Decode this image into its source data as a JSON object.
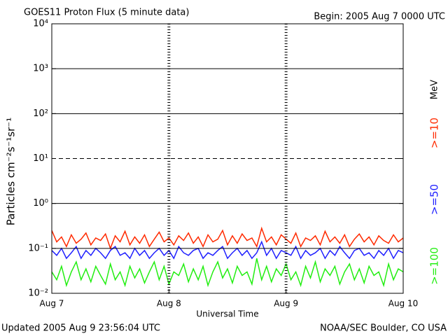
{
  "chart_data": {
    "type": "line",
    "title": "GOES11 Proton Flux (5 minute data)",
    "subtitle": "Begin: 2005 Aug 7 0000 UTC",
    "footer_left": "Updated 2005 Aug  9 23:56:04 UTC",
    "footer_right": "NOAA/SEC Boulder, CO USA",
    "xlabel": "Universal Time",
    "ylabel": "Particles cm⁻²s⁻¹sr⁻¹",
    "legend_unit": "MeV",
    "log_y": true,
    "grid": true,
    "grid_dash": [
      false,
      false,
      false,
      true,
      false,
      false,
      false
    ],
    "xlim": [
      0,
      72
    ],
    "xticks": [
      {
        "value": 0,
        "label": "Aug 7"
      },
      {
        "value": 24,
        "label": "Aug 8"
      },
      {
        "value": 48,
        "label": "Aug 9"
      },
      {
        "value": 72,
        "label": "Aug 10"
      }
    ],
    "ylim": [
      0.01,
      10000
    ],
    "yticks": [
      {
        "value": 0.01,
        "label": "10⁻²"
      },
      {
        "value": 0.1,
        "label": "10⁻¹"
      },
      {
        "value": 1,
        "label": "10⁰"
      },
      {
        "value": 10,
        "label": "10¹"
      },
      {
        "value": 100,
        "label": "10²"
      },
      {
        "value": 1000,
        "label": "10³"
      },
      {
        "value": 10000,
        "label": "10⁴"
      }
    ],
    "x": [
      0,
      1,
      2,
      3,
      4,
      5,
      6,
      7,
      8,
      9,
      10,
      11,
      12,
      13,
      14,
      15,
      16,
      17,
      18,
      19,
      20,
      21,
      22,
      23,
      24,
      25,
      26,
      27,
      28,
      29,
      30,
      31,
      32,
      33,
      34,
      35,
      36,
      37,
      38,
      39,
      40,
      41,
      42,
      43,
      44,
      45,
      46,
      47,
      48,
      49,
      50,
      51,
      52,
      53,
      54,
      55,
      56,
      57,
      58,
      59,
      60,
      61,
      62,
      63,
      64,
      65,
      66,
      67,
      68,
      69,
      70,
      71,
      72
    ],
    "series": [
      {
        "name": ">=10",
        "color": "#ff2a00",
        "values": [
          0.25,
          0.14,
          0.18,
          0.11,
          0.2,
          0.13,
          0.16,
          0.22,
          0.12,
          0.17,
          0.15,
          0.21,
          0.1,
          0.19,
          0.14,
          0.24,
          0.12,
          0.18,
          0.13,
          0.2,
          0.11,
          0.16,
          0.23,
          0.14,
          0.17,
          0.12,
          0.19,
          0.15,
          0.22,
          0.13,
          0.18,
          0.11,
          0.2,
          0.14,
          0.16,
          0.25,
          0.12,
          0.19,
          0.13,
          0.21,
          0.15,
          0.17,
          0.11,
          0.28,
          0.14,
          0.18,
          0.12,
          0.2,
          0.16,
          0.13,
          0.22,
          0.11,
          0.17,
          0.15,
          0.19,
          0.12,
          0.24,
          0.14,
          0.18,
          0.13,
          0.2,
          0.11,
          0.16,
          0.21,
          0.14,
          0.18,
          0.12,
          0.19,
          0.15,
          0.13,
          0.2,
          0.14,
          0.17
        ]
      },
      {
        "name": ">=50",
        "color": "#2020ff",
        "values": [
          0.09,
          0.07,
          0.1,
          0.06,
          0.08,
          0.11,
          0.06,
          0.09,
          0.07,
          0.1,
          0.08,
          0.06,
          0.09,
          0.11,
          0.07,
          0.08,
          0.06,
          0.1,
          0.07,
          0.09,
          0.06,
          0.08,
          0.1,
          0.07,
          0.09,
          0.06,
          0.11,
          0.08,
          0.07,
          0.09,
          0.1,
          0.06,
          0.08,
          0.07,
          0.09,
          0.11,
          0.06,
          0.08,
          0.1,
          0.07,
          0.09,
          0.06,
          0.08,
          0.14,
          0.07,
          0.1,
          0.06,
          0.09,
          0.08,
          0.07,
          0.11,
          0.06,
          0.09,
          0.07,
          0.08,
          0.1,
          0.06,
          0.09,
          0.07,
          0.11,
          0.08,
          0.06,
          0.09,
          0.1,
          0.07,
          0.08,
          0.06,
          0.09,
          0.07,
          0.1,
          0.06,
          0.09,
          0.08
        ]
      },
      {
        "name": ">=100",
        "color": "#22ee11",
        "values": [
          0.03,
          0.02,
          0.04,
          0.015,
          0.03,
          0.05,
          0.02,
          0.035,
          0.018,
          0.04,
          0.025,
          0.016,
          0.045,
          0.02,
          0.03,
          0.015,
          0.04,
          0.022,
          0.035,
          0.017,
          0.03,
          0.05,
          0.02,
          0.04,
          0.016,
          0.03,
          0.025,
          0.045,
          0.018,
          0.035,
          0.02,
          0.04,
          0.015,
          0.03,
          0.05,
          0.022,
          0.035,
          0.017,
          0.04,
          0.025,
          0.03,
          0.016,
          0.06,
          0.02,
          0.04,
          0.018,
          0.035,
          0.025,
          0.045,
          0.02,
          0.03,
          0.015,
          0.04,
          0.022,
          0.05,
          0.018,
          0.035,
          0.025,
          0.04,
          0.016,
          0.03,
          0.045,
          0.02,
          0.035,
          0.017,
          0.04,
          0.025,
          0.03,
          0.015,
          0.045,
          0.02,
          0.035,
          0.03
        ]
      }
    ]
  }
}
